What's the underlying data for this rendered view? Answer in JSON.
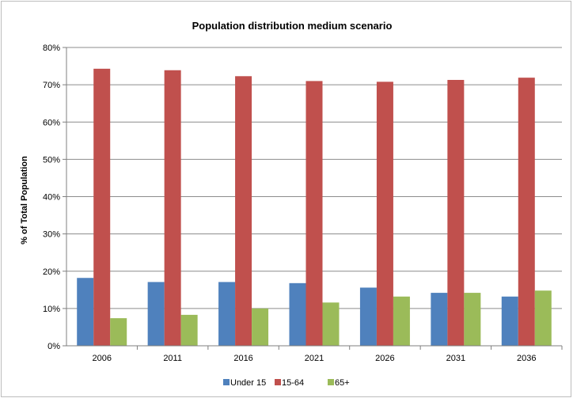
{
  "chart_data": {
    "type": "bar",
    "title": "Population distribution medium scenario",
    "xlabel": "",
    "ylabel": "% of Total Population",
    "categories": [
      "2006",
      "2011",
      "2016",
      "2021",
      "2026",
      "2031",
      "2036"
    ],
    "series": [
      {
        "name": "Under 15",
        "color": "#4f81bd",
        "values": [
          18.2,
          17.1,
          17.1,
          16.8,
          15.6,
          14.2,
          13.2
        ]
      },
      {
        "name": "15-64",
        "color": "#c0504d",
        "values": [
          74.3,
          73.9,
          72.3,
          71.0,
          70.8,
          71.3,
          71.9
        ]
      },
      {
        "name": "65+",
        "color": "#9bbb59",
        "values": [
          7.4,
          8.3,
          10.0,
          11.6,
          13.2,
          14.2,
          14.8
        ]
      }
    ],
    "ylim": [
      0,
      80
    ],
    "yticks": [
      "0%",
      "10%",
      "20%",
      "30%",
      "40%",
      "50%",
      "60%",
      "70%",
      "80%"
    ],
    "grid": true,
    "legend_position": "bottom"
  }
}
